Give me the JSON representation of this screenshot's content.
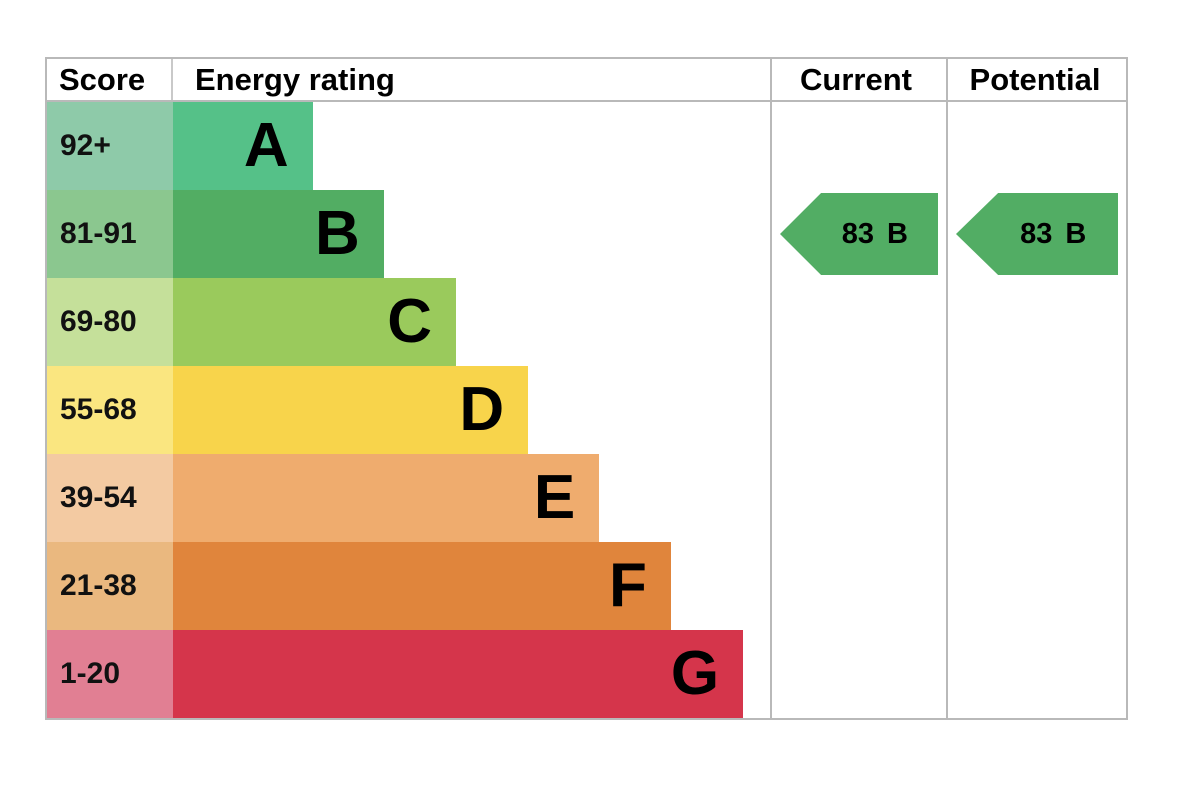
{
  "table": {
    "headers": {
      "score": "Score",
      "energy_rating": "Energy rating",
      "current": "Current",
      "potential": "Potential"
    }
  },
  "chart_data": {
    "type": "bar",
    "subtype": "epc-energy-rating",
    "bands": [
      {
        "score_range": "92+",
        "letter": "A",
        "bar_length_pct": 23.4,
        "bar_color": "#55c188",
        "score_cell_color": "#8ecaa9"
      },
      {
        "score_range": "81-91",
        "letter": "B",
        "bar_length_pct": 35.3,
        "bar_color": "#52ad63",
        "score_cell_color": "#8bc78f"
      },
      {
        "score_range": "69-80",
        "letter": "C",
        "bar_length_pct": 47.4,
        "bar_color": "#9aca5c",
        "score_cell_color": "#c5e09a"
      },
      {
        "score_range": "55-68",
        "letter": "D",
        "bar_length_pct": 59.5,
        "bar_color": "#f8d44b",
        "score_cell_color": "#fae680"
      },
      {
        "score_range": "39-54",
        "letter": "E",
        "bar_length_pct": 71.4,
        "bar_color": "#efac6e",
        "score_cell_color": "#f3caa2"
      },
      {
        "score_range": "21-38",
        "letter": "F",
        "bar_length_pct": 83.4,
        "bar_color": "#e0853c",
        "score_cell_color": "#eab87f"
      },
      {
        "score_range": "1-20",
        "letter": "G",
        "bar_length_pct": 95.5,
        "bar_color": "#d5354b",
        "score_cell_color": "#e17f93"
      }
    ],
    "current": {
      "value": 83,
      "letter": "B",
      "band_index": 1,
      "arrow_color": "#52ad64"
    },
    "potential": {
      "value": 83,
      "letter": "B",
      "band_index": 1,
      "arrow_color": "#52ad64"
    }
  }
}
